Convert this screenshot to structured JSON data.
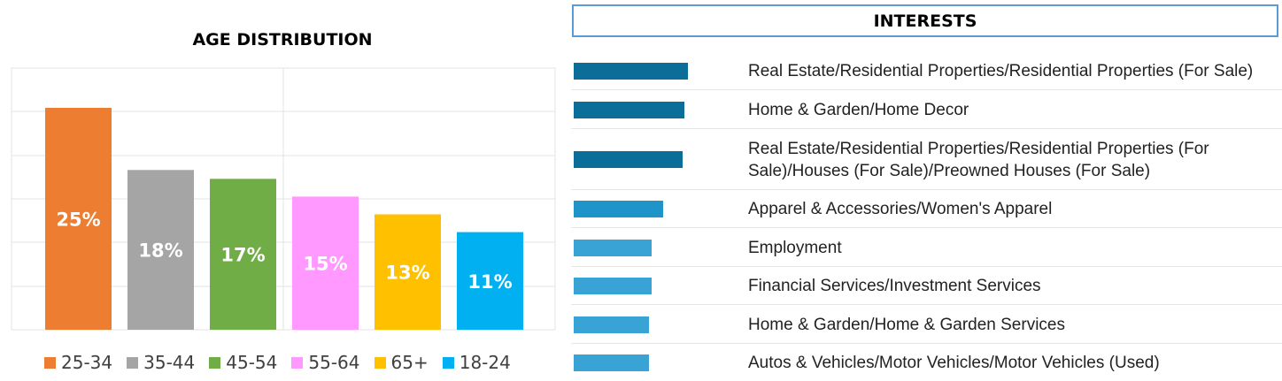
{
  "chart_data": [
    {
      "type": "bar",
      "title": "AGE DISTRIBUTION",
      "categories": [
        "25-34",
        "35-44",
        "45-54",
        "55-64",
        "65+",
        "18-24"
      ],
      "values": [
        25,
        18,
        17,
        15,
        13,
        11
      ],
      "value_labels": [
        "25%",
        "18%",
        "17%",
        "15%",
        "13%",
        "11%"
      ],
      "colors": [
        "#ED7D31",
        "#A5A5A5",
        "#70AD47",
        "#FF99FF",
        "#FFC000",
        "#00B0F0"
      ],
      "ylim": [
        0,
        30
      ],
      "grid": true,
      "legend": "bottom"
    },
    {
      "type": "bar",
      "orientation": "horizontal",
      "title": "INTERESTS",
      "categories": [
        "Real Estate/Residential Properties/Residential Properties (For Sale)",
        "Home & Garden/Home Decor",
        "Real Estate/Residential Properties/Residential Properties (For Sale)/Houses (For Sale)/Preowned Houses (For Sale)",
        "Apparel & Accessories/Women's Apparel",
        "Employment",
        "Financial Services/Investment Services",
        "Home & Garden/Home & Garden Services",
        "Autos & Vehicles/Motor Vehicles/Motor Vehicles (Used)"
      ],
      "values": [
        1.0,
        0.97,
        0.95,
        0.78,
        0.68,
        0.68,
        0.66,
        0.66
      ],
      "colors": [
        "#0B6E99",
        "#0B6E99",
        "#0B6E99",
        "#1F94C9",
        "#3AA3D6",
        "#3AA3D6",
        "#3AA3D6",
        "#3AA3D6"
      ]
    }
  ]
}
